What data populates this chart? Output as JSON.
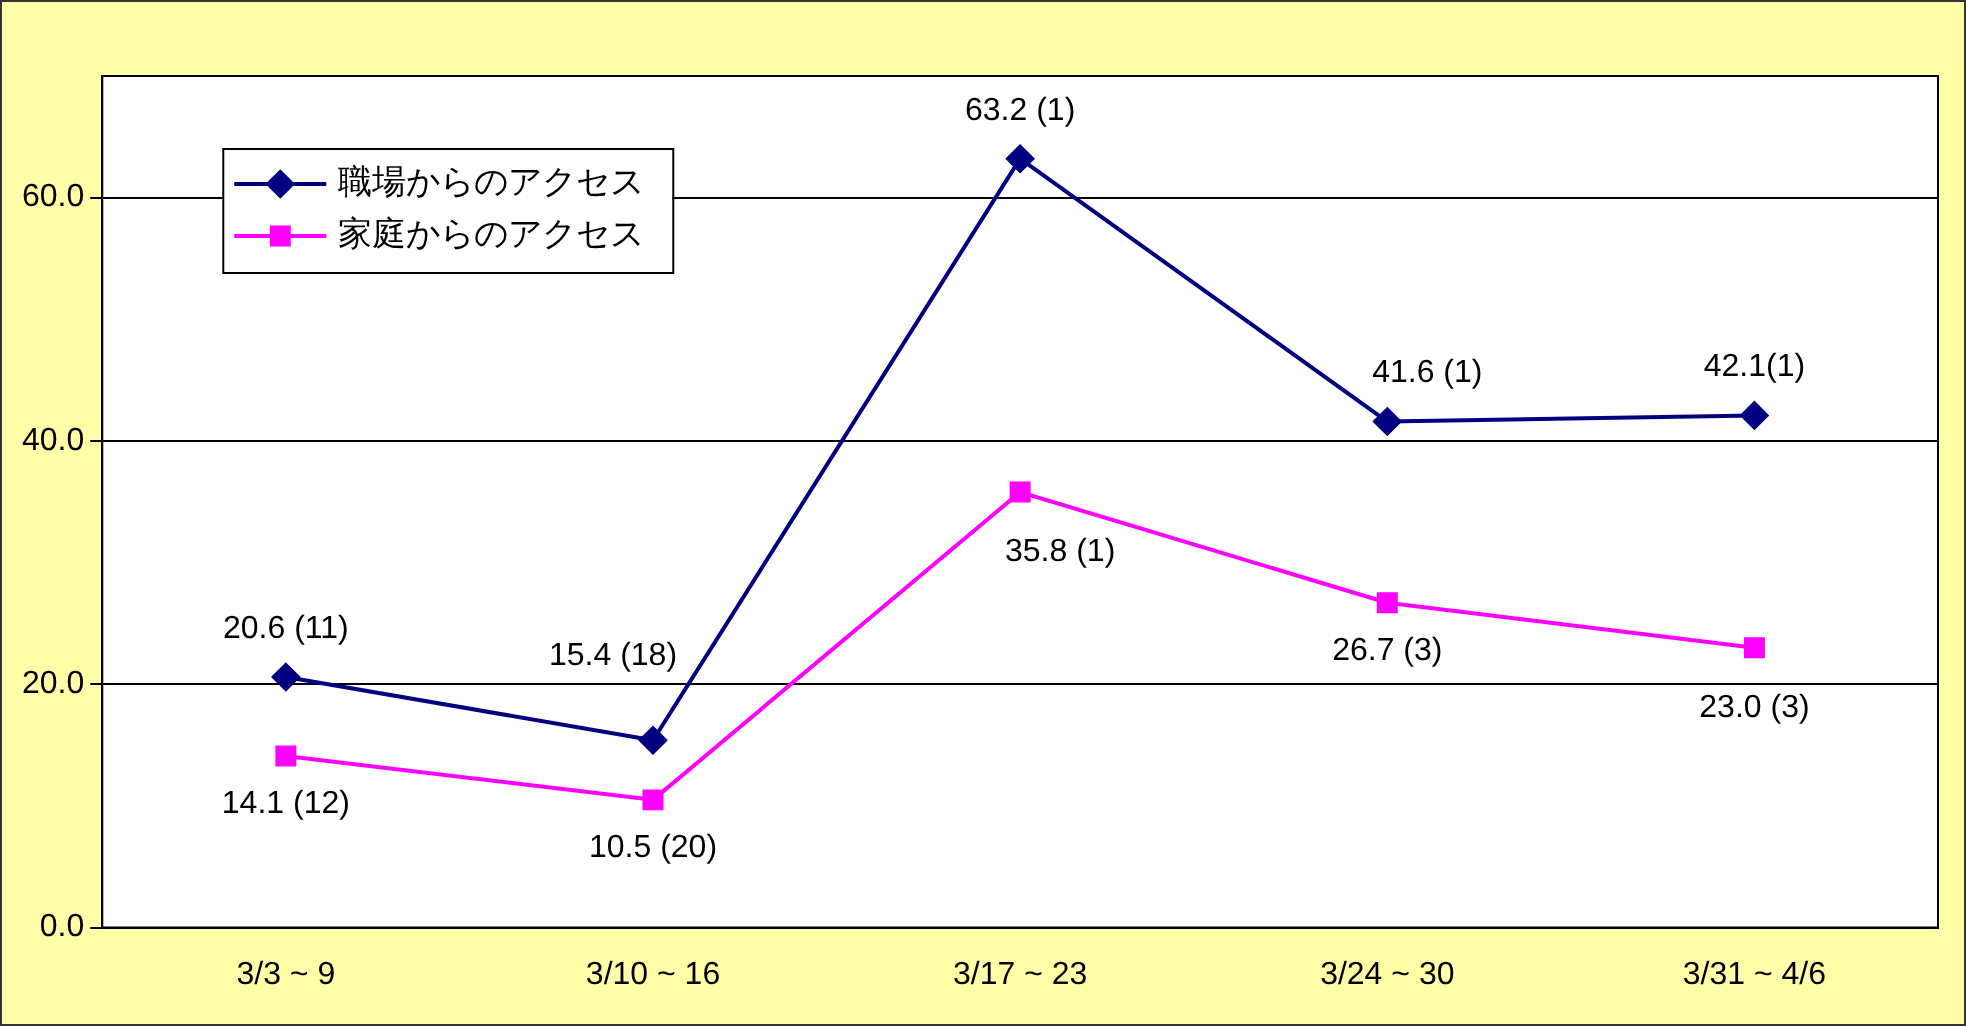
{
  "chart_data": {
    "type": "line",
    "categories": [
      "3/3 ~ 9",
      "3/10 ~ 16",
      "3/17 ~ 23",
      "3/24 ~ 30",
      "3/31 ~ 4/6"
    ],
    "series": [
      {
        "name": "職場からのアクセス",
        "color": "#000080",
        "marker": "diamond",
        "values": [
          20.6,
          15.4,
          63.2,
          41.6,
          42.1
        ],
        "value_labels": [
          "20.6 (11)",
          "15.4 (18)",
          "63.2 (1)",
          "41.6 (1)",
          "42.1(1)"
        ]
      },
      {
        "name": "家庭からのアクセス",
        "color": "#ff00ff",
        "marker": "square",
        "values": [
          14.1,
          10.5,
          35.8,
          26.7,
          23.0
        ],
        "value_labels": [
          "14.1 (12)",
          "10.5 (20)",
          "35.8 (1)",
          "26.7 (3)",
          "23.0 (3)"
        ]
      }
    ],
    "ylim": [
      0,
      70
    ],
    "yticks": [
      {
        "value": 0,
        "label": "0.0"
      },
      {
        "value": 20,
        "label": "20.0"
      },
      {
        "value": 40,
        "label": "40.0"
      },
      {
        "value": 60,
        "label": "60.0"
      }
    ],
    "grid": "y",
    "legend": "top left"
  }
}
